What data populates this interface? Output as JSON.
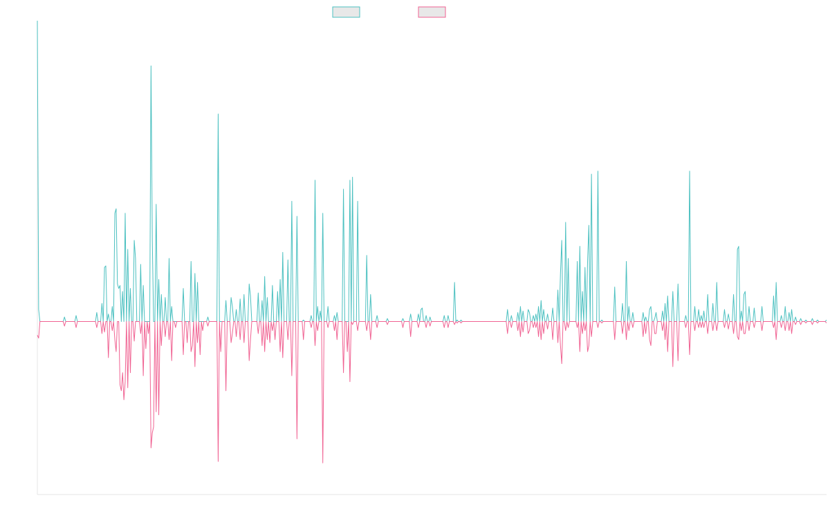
{
  "chart_data": {
    "type": "line",
    "x_count": 500,
    "ylim": [
      -115,
      200
    ],
    "grid": false,
    "legend": "top-center",
    "series": [
      {
        "color": "#4bc0c0",
        "fill": "#e8e8e8",
        "peaks": [
          [
            0,
            200
          ],
          [
            1,
            8
          ],
          [
            21,
            3
          ],
          [
            30,
            4
          ],
          [
            46,
            6
          ],
          [
            50,
            12
          ],
          [
            52,
            36
          ],
          [
            53,
            37
          ],
          [
            55,
            5
          ],
          [
            58,
            10
          ],
          [
            60,
            72
          ],
          [
            61,
            75
          ],
          [
            62,
            25
          ],
          [
            63,
            22
          ],
          [
            64,
            24
          ],
          [
            66,
            20
          ],
          [
            68,
            72
          ],
          [
            70,
            48
          ],
          [
            72,
            22
          ],
          [
            75,
            54
          ],
          [
            76,
            42
          ],
          [
            80,
            38
          ],
          [
            82,
            24
          ],
          [
            88,
            170
          ],
          [
            89,
            54
          ],
          [
            92,
            78
          ],
          [
            94,
            28
          ],
          [
            96,
            18
          ],
          [
            99,
            16
          ],
          [
            102,
            42
          ],
          [
            104,
            10
          ],
          [
            113,
            22
          ],
          [
            119,
            40
          ],
          [
            122,
            32
          ],
          [
            124,
            26
          ],
          [
            132,
            3
          ],
          [
            140,
            138
          ],
          [
            146,
            14
          ],
          [
            150,
            16
          ],
          [
            151,
            10
          ],
          [
            154,
            8
          ],
          [
            157,
            15
          ],
          [
            160,
            18
          ],
          [
            164,
            25
          ],
          [
            165,
            17
          ],
          [
            171,
            19
          ],
          [
            174,
            14
          ],
          [
            176,
            30
          ],
          [
            178,
            16
          ],
          [
            182,
            24
          ],
          [
            186,
            20
          ],
          [
            188,
            28
          ],
          [
            190,
            46
          ],
          [
            194,
            41
          ],
          [
            197,
            80
          ],
          [
            201,
            70
          ],
          [
            206,
            1
          ],
          [
            212,
            4
          ],
          [
            215,
            94
          ],
          [
            217,
            10
          ],
          [
            219,
            7
          ],
          [
            221,
            72
          ],
          [
            225,
            10
          ],
          [
            230,
            4
          ],
          [
            232,
            6
          ],
          [
            237,
            88
          ],
          [
            242,
            94
          ],
          [
            244,
            96
          ],
          [
            248,
            80
          ],
          [
            255,
            44
          ],
          [
            258,
            18
          ],
          [
            263,
            4
          ],
          [
            271,
            2
          ],
          [
            283,
            2
          ],
          [
            289,
            5
          ],
          [
            295,
            5
          ],
          [
            297,
            8
          ],
          [
            298,
            9
          ],
          [
            301,
            4
          ],
          [
            304,
            3
          ],
          [
            315,
            4
          ],
          [
            318,
            4
          ],
          [
            323,
            26
          ],
          [
            325,
            1
          ],
          [
            328,
            1
          ],
          [
            364,
            8
          ],
          [
            367,
            4
          ],
          [
            372,
            6
          ],
          [
            374,
            10
          ],
          [
            376,
            7
          ],
          [
            380,
            8
          ],
          [
            381,
            6
          ],
          [
            384,
            4
          ],
          [
            386,
            5
          ],
          [
            388,
            10
          ],
          [
            390,
            14
          ],
          [
            392,
            8
          ],
          [
            395,
            5
          ],
          [
            399,
            9
          ],
          [
            403,
            21
          ],
          [
            405,
            32
          ],
          [
            406,
            54
          ],
          [
            409,
            66
          ],
          [
            411,
            42
          ],
          [
            418,
            40
          ],
          [
            420,
            50
          ],
          [
            422,
            20
          ],
          [
            424,
            36
          ],
          [
            426,
            40
          ],
          [
            427,
            64
          ],
          [
            429,
            98
          ],
          [
            434,
            100
          ],
          [
            437,
            1
          ],
          [
            447,
            23
          ],
          [
            453,
            12
          ],
          [
            456,
            40
          ],
          [
            458,
            10
          ],
          [
            461,
            6
          ],
          [
            469,
            6
          ],
          [
            471,
            3
          ],
          [
            474,
            8
          ],
          [
            475,
            10
          ],
          [
            478,
            2
          ],
          [
            479,
            6
          ],
          [
            484,
            7
          ],
          [
            486,
            12
          ],
          [
            488,
            17
          ],
          [
            492,
            20
          ],
          [
            496,
            25
          ],
          [
            502,
            4
          ],
          [
            505,
            100
          ],
          [
            509,
            10
          ],
          [
            512,
            8
          ],
          [
            514,
            4
          ],
          [
            516,
            7
          ],
          [
            519,
            18
          ],
          [
            523,
            12
          ],
          [
            526,
            26
          ],
          [
            532,
            8
          ],
          [
            535,
            5
          ],
          [
            539,
            18
          ],
          [
            542,
            48
          ],
          [
            543,
            50
          ],
          [
            545,
            7
          ],
          [
            547,
            18
          ],
          [
            548,
            20
          ],
          [
            551,
            10
          ],
          [
            555,
            9
          ],
          [
            561,
            10
          ],
          [
            570,
            17
          ],
          [
            572,
            26
          ],
          [
            576,
            4
          ],
          [
            579,
            10
          ],
          [
            582,
            6
          ],
          [
            584,
            8
          ],
          [
            587,
            3
          ],
          [
            591,
            2
          ],
          [
            595,
            1
          ],
          [
            600,
            2
          ],
          [
            604,
            1
          ],
          [
            611,
            1
          ]
        ]
      },
      {
        "color": "#f06292",
        "fill": "#e8e8e8",
        "peaks": [
          [
            0,
            -9
          ],
          [
            1,
            -11
          ],
          [
            21,
            -3
          ],
          [
            30,
            -4
          ],
          [
            46,
            -4
          ],
          [
            50,
            -8
          ],
          [
            52,
            -7
          ],
          [
            55,
            -24
          ],
          [
            58,
            -6
          ],
          [
            60,
            -12
          ],
          [
            61,
            -20
          ],
          [
            64,
            -42
          ],
          [
            65,
            -46
          ],
          [
            66,
            -34
          ],
          [
            67,
            -52
          ],
          [
            68,
            -40
          ],
          [
            70,
            -44
          ],
          [
            72,
            -34
          ],
          [
            75,
            -13
          ],
          [
            80,
            -8
          ],
          [
            82,
            -36
          ],
          [
            84,
            -18
          ],
          [
            86,
            -8
          ],
          [
            88,
            -84
          ],
          [
            89,
            -74
          ],
          [
            90,
            -70
          ],
          [
            92,
            -60
          ],
          [
            94,
            -62
          ],
          [
            96,
            -16
          ],
          [
            99,
            -10
          ],
          [
            102,
            -12
          ],
          [
            104,
            -26
          ],
          [
            107,
            -4
          ],
          [
            113,
            -22
          ],
          [
            116,
            -14
          ],
          [
            119,
            -20
          ],
          [
            120,
            -16
          ],
          [
            122,
            -30
          ],
          [
            124,
            -14
          ],
          [
            126,
            -22
          ],
          [
            128,
            -6
          ],
          [
            132,
            -3
          ],
          [
            140,
            -93
          ],
          [
            142,
            -20
          ],
          [
            146,
            -46
          ],
          [
            150,
            -14
          ],
          [
            151,
            -8
          ],
          [
            154,
            -10
          ],
          [
            157,
            -12
          ],
          [
            160,
            -14
          ],
          [
            164,
            -26
          ],
          [
            165,
            -12
          ],
          [
            171,
            -8
          ],
          [
            174,
            -16
          ],
          [
            176,
            -20
          ],
          [
            178,
            -12
          ],
          [
            180,
            -14
          ],
          [
            182,
            -6
          ],
          [
            184,
            -12
          ],
          [
            188,
            -20
          ],
          [
            190,
            -24
          ],
          [
            194,
            -12
          ],
          [
            197,
            -36
          ],
          [
            201,
            -78
          ],
          [
            206,
            -12
          ],
          [
            212,
            -4
          ],
          [
            215,
            -16
          ],
          [
            217,
            -6
          ],
          [
            221,
            -94
          ],
          [
            225,
            -4
          ],
          [
            230,
            -6
          ],
          [
            232,
            -12
          ],
          [
            237,
            -34
          ],
          [
            240,
            -20
          ],
          [
            242,
            -40
          ],
          [
            244,
            -2
          ],
          [
            248,
            -6
          ],
          [
            255,
            -6
          ],
          [
            258,
            -12
          ],
          [
            263,
            -4
          ],
          [
            271,
            -2
          ],
          [
            283,
            -4
          ],
          [
            289,
            -10
          ],
          [
            295,
            -4
          ],
          [
            301,
            -4
          ],
          [
            304,
            -3
          ],
          [
            315,
            -4
          ],
          [
            318,
            -4
          ],
          [
            323,
            -2
          ],
          [
            325,
            -1
          ],
          [
            328,
            -1
          ],
          [
            364,
            -8
          ],
          [
            367,
            -4
          ],
          [
            372,
            -6
          ],
          [
            374,
            -10
          ],
          [
            376,
            -7
          ],
          [
            380,
            -8
          ],
          [
            381,
            -6
          ],
          [
            384,
            -4
          ],
          [
            386,
            -4
          ],
          [
            388,
            -10
          ],
          [
            390,
            -12
          ],
          [
            392,
            -8
          ],
          [
            395,
            -5
          ],
          [
            399,
            -12
          ],
          [
            403,
            -14
          ],
          [
            405,
            -16
          ],
          [
            406,
            -28
          ],
          [
            409,
            -6
          ],
          [
            411,
            -4
          ],
          [
            418,
            -4
          ],
          [
            420,
            -20
          ],
          [
            422,
            -8
          ],
          [
            424,
            -6
          ],
          [
            426,
            -20
          ],
          [
            427,
            -16
          ],
          [
            429,
            -10
          ],
          [
            434,
            -4
          ],
          [
            437,
            -1
          ],
          [
            447,
            -12
          ],
          [
            453,
            -8
          ],
          [
            456,
            -12
          ],
          [
            458,
            -6
          ],
          [
            461,
            -4
          ],
          [
            469,
            -10
          ],
          [
            471,
            -8
          ],
          [
            474,
            -12
          ],
          [
            475,
            -16
          ],
          [
            478,
            -8
          ],
          [
            479,
            -8
          ],
          [
            484,
            -6
          ],
          [
            486,
            -12
          ],
          [
            488,
            -20
          ],
          [
            492,
            -30
          ],
          [
            496,
            -26
          ],
          [
            502,
            -4
          ],
          [
            505,
            -22
          ],
          [
            509,
            -6
          ],
          [
            512,
            -4
          ],
          [
            514,
            -4
          ],
          [
            516,
            -4
          ],
          [
            519,
            -8
          ],
          [
            523,
            -6
          ],
          [
            526,
            -6
          ],
          [
            532,
            -4
          ],
          [
            535,
            -5
          ],
          [
            539,
            -8
          ],
          [
            542,
            -10
          ],
          [
            543,
            -12
          ],
          [
            545,
            -6
          ],
          [
            547,
            -8
          ],
          [
            548,
            -8
          ],
          [
            551,
            -6
          ],
          [
            555,
            -4
          ],
          [
            561,
            -6
          ],
          [
            570,
            -4
          ],
          [
            572,
            -12
          ],
          [
            576,
            -4
          ],
          [
            579,
            -6
          ],
          [
            582,
            -6
          ],
          [
            584,
            -8
          ],
          [
            587,
            -2
          ],
          [
            591,
            -2
          ],
          [
            595,
            -1
          ],
          [
            600,
            -2
          ],
          [
            604,
            -1
          ],
          [
            611,
            -1
          ]
        ]
      }
    ]
  }
}
